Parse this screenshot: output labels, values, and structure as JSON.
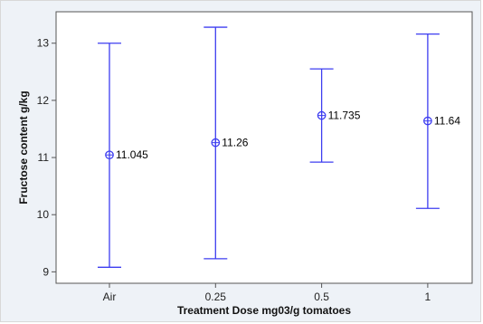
{
  "chart_data": {
    "type": "interval",
    "categories": [
      "Air",
      "0.25",
      "0.5",
      "1"
    ],
    "series": [
      {
        "means": [
          11.045,
          11.26,
          11.735,
          11.64
        ],
        "lower": [
          9.08,
          9.23,
          10.92,
          10.11
        ],
        "upper": [
          13.0,
          13.28,
          12.55,
          13.16
        ],
        "labels": [
          "11.045",
          "11.26",
          "11.735",
          "11.64"
        ]
      }
    ],
    "xlabel": "Treatment Dose mg03/g tomatoes",
    "ylabel": "Fructose content g/kg",
    "ylim": [
      8.8,
      13.55
    ],
    "yticks": [
      "9",
      "10",
      "11",
      "12",
      "13"
    ],
    "grid": false,
    "colors": {
      "series": "#3d3df0",
      "plot_bg": "#ffffff",
      "frame_bg": "#eef2f7",
      "axis": "#555555"
    }
  }
}
